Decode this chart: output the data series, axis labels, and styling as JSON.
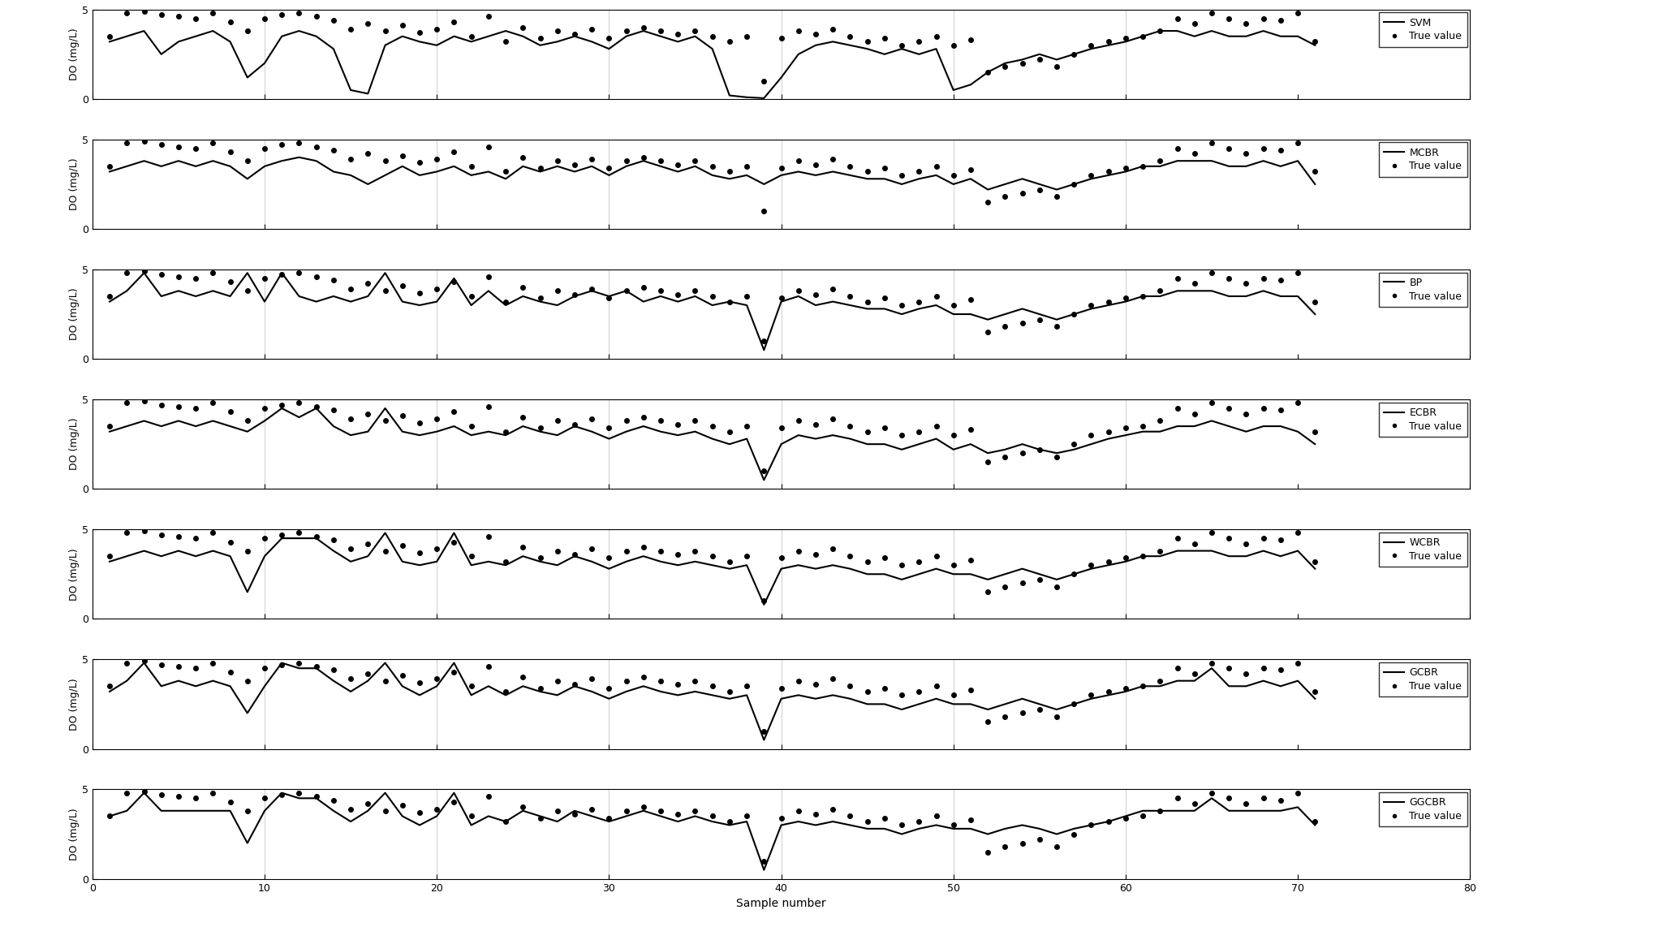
{
  "methods": [
    "SVM",
    "MCBR",
    "BP",
    "ECBR",
    "WCBR",
    "GCBR",
    "GGCBR"
  ],
  "xlim": [
    0,
    80
  ],
  "ylim": [
    0,
    5
  ],
  "xticks": [
    0,
    10,
    20,
    30,
    40,
    50,
    60,
    70,
    80
  ],
  "yticks": [
    0,
    5
  ],
  "xlabel": "Sample number",
  "ylabel": "DO (mg/L)",
  "figsize": [
    20.7,
    11.58
  ],
  "dpi": 100,
  "true_values": [
    3.5,
    4.8,
    4.9,
    4.7,
    4.6,
    4.5,
    4.8,
    4.3,
    3.8,
    4.5,
    4.7,
    4.8,
    4.6,
    4.4,
    3.9,
    4.2,
    3.8,
    4.1,
    3.7,
    3.9,
    4.3,
    3.5,
    4.6,
    3.2,
    4.0,
    3.4,
    3.8,
    3.6,
    3.9,
    3.4,
    3.8,
    4.0,
    3.8,
    3.6,
    3.8,
    3.5,
    3.2,
    3.5,
    1.0,
    3.4,
    3.8,
    3.6,
    3.9,
    3.5,
    3.2,
    3.4,
    3.0,
    3.2,
    3.5,
    3.0,
    3.3,
    1.5,
    1.8,
    2.0,
    2.2,
    1.8,
    2.5,
    3.0,
    3.2,
    3.4,
    3.5,
    3.8,
    4.5,
    4.2,
    4.8,
    4.5,
    4.2,
    4.5,
    4.4,
    4.8,
    3.2
  ],
  "svm_values": [
    3.2,
    3.5,
    3.8,
    2.5,
    3.2,
    3.5,
    3.8,
    3.2,
    1.2,
    2.0,
    3.5,
    3.8,
    3.5,
    2.8,
    0.5,
    0.3,
    3.0,
    3.5,
    3.2,
    3.0,
    3.5,
    3.2,
    3.5,
    3.8,
    3.5,
    3.0,
    3.2,
    3.5,
    3.2,
    2.8,
    3.5,
    3.8,
    3.5,
    3.2,
    3.5,
    2.8,
    0.2,
    0.1,
    0.05,
    1.2,
    2.5,
    3.0,
    3.2,
    3.0,
    2.8,
    2.5,
    2.8,
    2.5,
    2.8,
    0.5,
    0.8,
    1.5,
    2.0,
    2.2,
    2.5,
    2.2,
    2.5,
    2.8,
    3.0,
    3.2,
    3.5,
    3.8,
    3.8,
    3.5,
    3.8,
    3.5,
    3.5,
    3.8,
    3.5,
    3.5,
    3.0
  ],
  "mcbr_values": [
    3.2,
    3.5,
    3.8,
    3.5,
    3.8,
    3.5,
    3.8,
    3.5,
    2.8,
    3.5,
    3.8,
    4.0,
    3.8,
    3.2,
    3.0,
    2.5,
    3.0,
    3.5,
    3.0,
    3.2,
    3.5,
    3.0,
    3.2,
    2.8,
    3.5,
    3.2,
    3.5,
    3.2,
    3.5,
    3.0,
    3.5,
    3.8,
    3.5,
    3.2,
    3.5,
    3.0,
    2.8,
    3.0,
    2.5,
    3.0,
    3.2,
    3.0,
    3.2,
    3.0,
    2.8,
    2.8,
    2.5,
    2.8,
    3.0,
    2.5,
    2.8,
    2.2,
    2.5,
    2.8,
    2.5,
    2.2,
    2.5,
    2.8,
    3.0,
    3.2,
    3.5,
    3.5,
    3.8,
    3.8,
    3.8,
    3.5,
    3.5,
    3.8,
    3.5,
    3.8,
    2.5
  ],
  "bp_values": [
    3.2,
    3.8,
    4.8,
    3.5,
    3.8,
    3.5,
    3.8,
    3.5,
    4.8,
    3.2,
    4.8,
    3.5,
    3.2,
    3.5,
    3.2,
    3.5,
    4.8,
    3.2,
    3.0,
    3.2,
    4.5,
    3.0,
    3.8,
    3.0,
    3.5,
    3.2,
    3.0,
    3.5,
    3.8,
    3.5,
    3.8,
    3.2,
    3.5,
    3.2,
    3.5,
    3.0,
    3.2,
    3.0,
    0.5,
    3.2,
    3.5,
    3.0,
    3.2,
    3.0,
    2.8,
    2.8,
    2.5,
    2.8,
    3.0,
    2.5,
    2.5,
    2.2,
    2.5,
    2.8,
    2.5,
    2.2,
    2.5,
    2.8,
    3.0,
    3.2,
    3.5,
    3.5,
    3.8,
    3.8,
    3.8,
    3.5,
    3.5,
    3.8,
    3.5,
    3.5,
    2.5
  ],
  "ecbr_values": [
    3.2,
    3.5,
    3.8,
    3.5,
    3.8,
    3.5,
    3.8,
    3.5,
    3.2,
    3.8,
    4.5,
    4.0,
    4.5,
    3.5,
    3.0,
    3.2,
    4.5,
    3.2,
    3.0,
    3.2,
    3.5,
    3.0,
    3.2,
    3.0,
    3.5,
    3.2,
    3.0,
    3.5,
    3.2,
    2.8,
    3.2,
    3.5,
    3.2,
    3.0,
    3.2,
    2.8,
    2.5,
    2.8,
    0.5,
    2.5,
    3.0,
    2.8,
    3.0,
    2.8,
    2.5,
    2.5,
    2.2,
    2.5,
    2.8,
    2.2,
    2.5,
    2.0,
    2.2,
    2.5,
    2.2,
    2.0,
    2.2,
    2.5,
    2.8,
    3.0,
    3.2,
    3.2,
    3.5,
    3.5,
    3.8,
    3.5,
    3.2,
    3.5,
    3.5,
    3.2,
    2.5
  ],
  "wcbr_values": [
    3.2,
    3.5,
    3.8,
    3.5,
    3.8,
    3.5,
    3.8,
    3.5,
    1.5,
    3.5,
    4.5,
    4.5,
    4.5,
    3.8,
    3.2,
    3.5,
    4.8,
    3.2,
    3.0,
    3.2,
    4.8,
    3.0,
    3.2,
    3.0,
    3.5,
    3.2,
    3.0,
    3.5,
    3.2,
    2.8,
    3.2,
    3.5,
    3.2,
    3.0,
    3.2,
    3.0,
    2.8,
    3.0,
    0.8,
    2.8,
    3.0,
    2.8,
    3.0,
    2.8,
    2.5,
    2.5,
    2.2,
    2.5,
    2.8,
    2.5,
    2.5,
    2.2,
    2.5,
    2.8,
    2.5,
    2.2,
    2.5,
    2.8,
    3.0,
    3.2,
    3.5,
    3.5,
    3.8,
    3.8,
    3.8,
    3.5,
    3.5,
    3.8,
    3.5,
    3.8,
    2.8
  ],
  "gcbr_values": [
    3.2,
    3.8,
    4.8,
    3.5,
    3.8,
    3.5,
    3.8,
    3.5,
    2.0,
    3.5,
    4.8,
    4.5,
    4.5,
    3.8,
    3.2,
    3.8,
    4.8,
    3.5,
    3.0,
    3.5,
    4.8,
    3.0,
    3.5,
    3.0,
    3.5,
    3.2,
    3.0,
    3.5,
    3.2,
    2.8,
    3.2,
    3.5,
    3.2,
    3.0,
    3.2,
    3.0,
    2.8,
    3.0,
    0.5,
    2.8,
    3.0,
    2.8,
    3.0,
    2.8,
    2.5,
    2.5,
    2.2,
    2.5,
    2.8,
    2.5,
    2.5,
    2.2,
    2.5,
    2.8,
    2.5,
    2.2,
    2.5,
    2.8,
    3.0,
    3.2,
    3.5,
    3.5,
    3.8,
    3.8,
    4.5,
    3.5,
    3.5,
    3.8,
    3.5,
    3.8,
    2.8
  ],
  "ggcbr_values": [
    3.5,
    3.8,
    4.8,
    3.8,
    3.8,
    3.8,
    3.8,
    3.8,
    2.0,
    3.8,
    4.8,
    4.5,
    4.5,
    3.8,
    3.2,
    3.8,
    4.8,
    3.5,
    3.0,
    3.5,
    4.8,
    3.0,
    3.5,
    3.2,
    3.8,
    3.5,
    3.2,
    3.8,
    3.5,
    3.2,
    3.5,
    3.8,
    3.5,
    3.2,
    3.5,
    3.2,
    3.0,
    3.2,
    0.5,
    3.0,
    3.2,
    3.0,
    3.2,
    3.0,
    2.8,
    2.8,
    2.5,
    2.8,
    3.0,
    2.8,
    2.8,
    2.5,
    2.8,
    3.0,
    2.8,
    2.5,
    2.8,
    3.0,
    3.2,
    3.5,
    3.8,
    3.8,
    3.8,
    3.8,
    4.5,
    3.8,
    3.8,
    3.8,
    3.8,
    4.0,
    3.0
  ]
}
